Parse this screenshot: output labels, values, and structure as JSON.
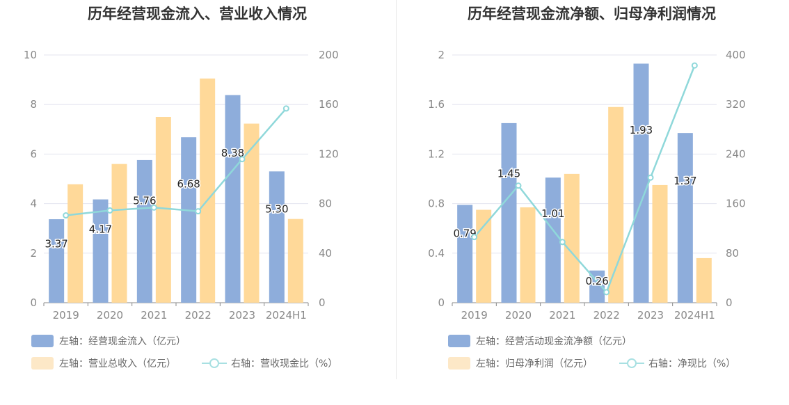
{
  "colors": {
    "bar_blue": "#8eaddb",
    "bar_orange": "#ffd999",
    "legend_orange": "#fde8c7",
    "line": "#8fd8da",
    "grid": "#e3e4ef",
    "axis": "#888888"
  },
  "chart_data": [
    {
      "type": "bar+line",
      "title": "历年经营现金流入、营业收入情况",
      "categories": [
        "2019",
        "2020",
        "2021",
        "2022",
        "2023",
        "2024H1"
      ],
      "left_axis": {
        "ticks": [
          "0",
          "2",
          "4",
          "6",
          "8",
          "10"
        ],
        "ylim": [
          0,
          10
        ]
      },
      "right_axis": {
        "ticks": [
          "0",
          "40",
          "80",
          "120",
          "160",
          "200"
        ],
        "ylim": [
          0,
          200
        ]
      },
      "series": [
        {
          "name": "左轴：经营现金流入（亿元）",
          "type": "bar",
          "axis": "left",
          "color": "#8eaddb",
          "values": [
            3.37,
            4.17,
            5.76,
            6.68,
            8.38,
            5.3
          ],
          "labels": [
            "3.37",
            "4.17",
            "5.76",
            "6.68",
            "8.38",
            "5.30"
          ]
        },
        {
          "name": "左轴：营业总收入（亿元）",
          "type": "bar",
          "axis": "left",
          "color": "#ffd999",
          "values": [
            4.78,
            5.6,
            7.5,
            9.05,
            7.23,
            3.38
          ]
        },
        {
          "name": "右轴：营收现金比（%）",
          "type": "line",
          "axis": "right",
          "color": "#8fd8da",
          "values": [
            70.5,
            74.5,
            76.8,
            73.8,
            115.9,
            156.8
          ]
        }
      ]
    },
    {
      "type": "bar+line",
      "title": "历年经营现金流净额、归母净利润情况",
      "categories": [
        "2019",
        "2020",
        "2021",
        "2022",
        "2023",
        "2024H1"
      ],
      "left_axis": {
        "ticks": [
          "0",
          "0.4",
          "0.8",
          "1.2",
          "1.6",
          "2"
        ],
        "ylim": [
          0,
          2
        ]
      },
      "right_axis": {
        "ticks": [
          "0",
          "80",
          "160",
          "240",
          "320",
          "400"
        ],
        "ylim": [
          0,
          400
        ]
      },
      "series": [
        {
          "name": "左轴：经营活动现金流净额（亿元）",
          "type": "bar",
          "axis": "left",
          "color": "#8eaddb",
          "values": [
            0.79,
            1.45,
            1.01,
            0.26,
            1.93,
            1.37
          ],
          "labels": [
            "0.79",
            "1.45",
            "1.01",
            "0.26",
            "1.93",
            "1.37"
          ]
        },
        {
          "name": "左轴：归母净利润（亿元）",
          "type": "bar",
          "axis": "left",
          "color": "#ffd999",
          "values": [
            0.75,
            0.77,
            1.04,
            1.58,
            0.95,
            0.36
          ]
        },
        {
          "name": "右轴：净现比（%）",
          "type": "line",
          "axis": "right",
          "color": "#8fd8da",
          "values": [
            106,
            189,
            98,
            17,
            202,
            383
          ]
        }
      ]
    }
  ]
}
